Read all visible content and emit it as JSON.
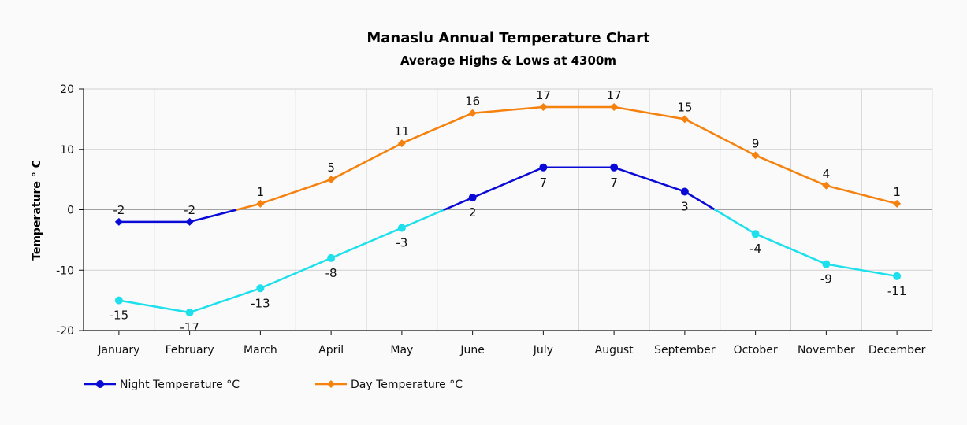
{
  "chart_data": {
    "type": "line",
    "title": "Manaslu Annual Temperature Chart",
    "subtitle": "Average Highs & Lows at 4300m",
    "xlabel": "",
    "ylabel": "Temperature ° C",
    "ylim": [
      -20,
      20
    ],
    "yticks": [
      20,
      10,
      0,
      -10,
      -20
    ],
    "grid": true,
    "legend_position": "bottom-left",
    "categories": [
      "January",
      "February",
      "March",
      "April",
      "May",
      "June",
      "July",
      "August",
      "September",
      "October",
      "November",
      "December"
    ],
    "series": [
      {
        "name": "Night Temperature °C",
        "values": [
          -15,
          -17,
          -13,
          -8,
          -3,
          2,
          7,
          7,
          3,
          -4,
          -9,
          -11
        ],
        "colors": {
          "warm": "#0a0ad6",
          "cold": "#1ee0ec"
        },
        "marker": "circle"
      },
      {
        "name": "Day Temperature °C",
        "values": [
          -2,
          -2,
          1,
          5,
          11,
          16,
          17,
          17,
          15,
          9,
          4,
          1
        ],
        "colors": {
          "warm": "#f5820f",
          "cold": "#0a0ad6"
        },
        "marker": "diamond"
      }
    ]
  }
}
